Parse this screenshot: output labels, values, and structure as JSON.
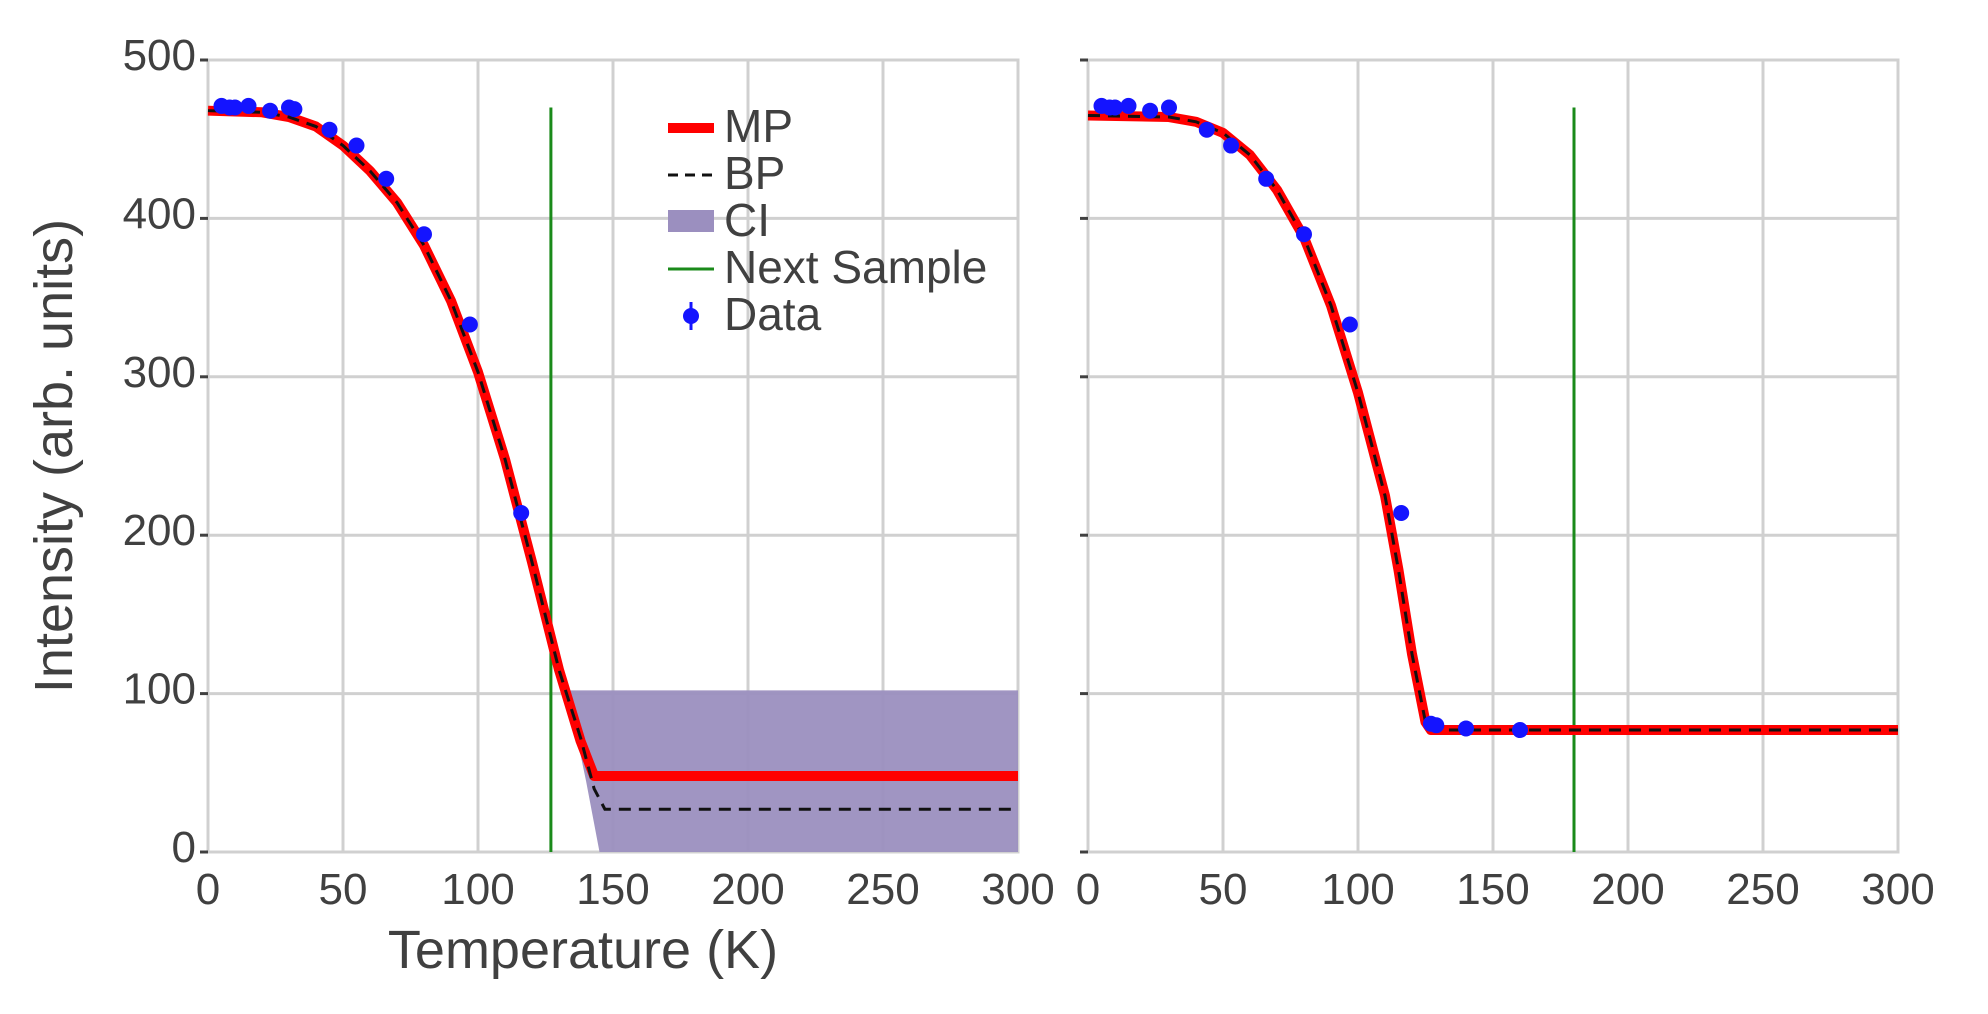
{
  "chart_data": [
    {
      "type": "line",
      "xlabel": "Temperature (K)",
      "ylabel": "Intensity (arb. units)",
      "xlim": [
        0,
        300
      ],
      "ylim": [
        0,
        500
      ],
      "x_ticks": [
        "0",
        "50",
        "100",
        "150",
        "200",
        "250",
        "300"
      ],
      "y_ticks": [
        "0",
        "100",
        "200",
        "300",
        "400",
        "500"
      ],
      "grid": true,
      "legend": {
        "placement": "top-center",
        "entries": [
          "MP",
          "BP",
          "CI",
          "Next Sample",
          "Data"
        ]
      },
      "colors": {
        "mp": "#ff0000",
        "bp": "#111111",
        "ci": "#9b8fbf",
        "next_sample": "#1a8a1a",
        "data": "#1414ff"
      },
      "next_sample_x": 127,
      "series": [
        {
          "name": "MP",
          "style": "solid-thick",
          "x": [
            0,
            20,
            30,
            40,
            50,
            60,
            70,
            80,
            90,
            100,
            110,
            120,
            130,
            138,
            143,
            150,
            200,
            250,
            300
          ],
          "y": [
            468,
            467,
            464,
            458,
            446,
            430,
            410,
            383,
            348,
            303,
            248,
            183,
            115,
            70,
            48,
            48,
            48,
            48,
            48
          ]
        },
        {
          "name": "BP",
          "style": "dashed",
          "x": [
            0,
            20,
            30,
            40,
            50,
            60,
            70,
            80,
            90,
            100,
            110,
            120,
            130,
            138,
            143,
            147,
            150,
            200,
            250,
            300
          ],
          "y": [
            468,
            467,
            464,
            458,
            446,
            430,
            410,
            383,
            348,
            303,
            248,
            183,
            115,
            72,
            40,
            27,
            27,
            27,
            27,
            27
          ]
        },
        {
          "name": "CI",
          "style": "band",
          "x": [
            133,
            140,
            145,
            150,
            200,
            250,
            300
          ],
          "lower": [
            102,
            45,
            0,
            0,
            0,
            0,
            0
          ],
          "upper": [
            102,
            102,
            102,
            102,
            102,
            102,
            102
          ]
        },
        {
          "name": "Data",
          "style": "points",
          "x": [
            5,
            8,
            10,
            15,
            23,
            30,
            32,
            45,
            55,
            66,
            80,
            97,
            116
          ],
          "y": [
            471,
            470,
            470,
            471,
            468,
            470,
            469,
            456,
            446,
            425,
            390,
            333,
            214
          ]
        }
      ]
    },
    {
      "type": "line",
      "xlim": [
        0,
        300
      ],
      "ylim": [
        0,
        500
      ],
      "x_ticks": [
        "0",
        "50",
        "100",
        "150",
        "200",
        "250",
        "300"
      ],
      "grid": true,
      "colors": {
        "mp": "#ff0000",
        "bp": "#111111",
        "next_sample": "#1a8a1a",
        "data": "#1414ff"
      },
      "next_sample_x": 180,
      "series": [
        {
          "name": "MP",
          "style": "solid-thick",
          "x": [
            0,
            30,
            40,
            50,
            60,
            70,
            80,
            90,
            100,
            110,
            115,
            120,
            125,
            127,
            130,
            150,
            200,
            250,
            300
          ],
          "y": [
            465,
            464,
            461,
            454,
            440,
            418,
            388,
            345,
            290,
            225,
            178,
            125,
            82,
            77,
            77,
            77,
            77,
            77,
            77
          ]
        },
        {
          "name": "BP",
          "style": "dashed",
          "x": [
            0,
            30,
            40,
            50,
            60,
            70,
            80,
            90,
            100,
            110,
            115,
            120,
            125,
            127,
            130,
            150,
            200,
            250,
            300
          ],
          "y": [
            465,
            464,
            461,
            454,
            440,
            418,
            388,
            345,
            290,
            225,
            178,
            125,
            82,
            77,
            77,
            77,
            77,
            77,
            77
          ]
        },
        {
          "name": "Data",
          "style": "points",
          "x": [
            5,
            8,
            10,
            15,
            23,
            30,
            44,
            53,
            66,
            80,
            97,
            116,
            127,
            129,
            140,
            160
          ],
          "y": [
            471,
            470,
            470,
            471,
            468,
            470,
            456,
            446,
            425,
            390,
            333,
            214,
            81,
            80,
            78,
            77
          ]
        }
      ]
    }
  ]
}
